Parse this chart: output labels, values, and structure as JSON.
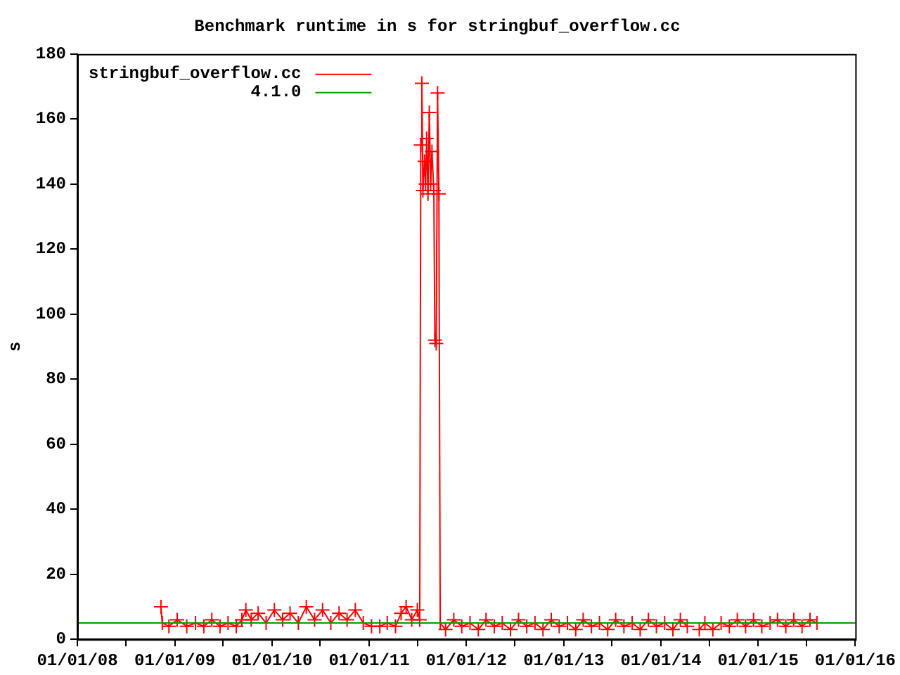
{
  "chart_data": {
    "type": "line",
    "title": "Benchmark runtime in s for stringbuf_overflow.cc",
    "ylabel": "s",
    "xlim": [
      "2008-01-01",
      "2016-01-01"
    ],
    "xticks": [
      {
        "value": "2008-01-01",
        "label": "01/01/08"
      },
      {
        "value": "2008-07-01",
        "label": null
      },
      {
        "value": "2009-01-01",
        "label": "01/01/09"
      },
      {
        "value": "2009-07-01",
        "label": null
      },
      {
        "value": "2010-01-01",
        "label": "01/01/10"
      },
      {
        "value": "2010-07-01",
        "label": null
      },
      {
        "value": "2011-01-01",
        "label": "01/01/11"
      },
      {
        "value": "2011-07-01",
        "label": null
      },
      {
        "value": "2012-01-01",
        "label": "01/01/12"
      },
      {
        "value": "2012-07-01",
        "label": null
      },
      {
        "value": "2013-01-01",
        "label": "01/01/13"
      },
      {
        "value": "2013-07-01",
        "label": null
      },
      {
        "value": "2014-01-01",
        "label": "01/01/14"
      },
      {
        "value": "2014-07-01",
        "label": null
      },
      {
        "value": "2015-01-01",
        "label": "01/01/15"
      },
      {
        "value": "2015-07-01",
        "label": null
      },
      {
        "value": "2016-01-01",
        "label": "01/01/16"
      }
    ],
    "ylim": [
      0,
      180
    ],
    "yticks": [
      0,
      20,
      40,
      60,
      80,
      100,
      120,
      140,
      160,
      180
    ],
    "grid": false,
    "legend": "top left",
    "marker": "cross",
    "line_style": "solid",
    "series": [
      {
        "name": "stringbuf_overflow.cc",
        "color": "#ff0000",
        "x": [
          "2008-11-10",
          "2008-11-15",
          "2008-12-10",
          "2009-01-10",
          "2009-02-15",
          "2009-03-20",
          "2009-04-20",
          "2009-05-20",
          "2009-06-20",
          "2009-07-20",
          "2009-08-20",
          "2009-09-10",
          "2009-09-25",
          "2009-10-15",
          "2009-11-10",
          "2009-12-10",
          "2010-01-10",
          "2010-02-10",
          "2010-03-10",
          "2010-04-10",
          "2010-05-10",
          "2010-06-10",
          "2010-07-10",
          "2010-08-10",
          "2010-09-10",
          "2010-10-10",
          "2010-11-10",
          "2010-12-10",
          "2011-01-10",
          "2011-02-10",
          "2011-03-10",
          "2011-04-10",
          "2011-05-01",
          "2011-05-20",
          "2011-06-10",
          "2011-07-01",
          "2011-07-10",
          "2011-07-14",
          "2011-07-18",
          "2011-07-22",
          "2011-07-28",
          "2011-08-01",
          "2011-08-05",
          "2011-08-10",
          "2011-08-15",
          "2011-08-20",
          "2011-08-25",
          "2011-09-01",
          "2011-09-05",
          "2011-09-10",
          "2011-09-15",
          "2011-09-20",
          "2011-09-25",
          "2011-10-15",
          "2011-11-15",
          "2011-12-15",
          "2012-01-15",
          "2012-02-15",
          "2012-03-15",
          "2012-04-15",
          "2012-05-15",
          "2012-06-15",
          "2012-07-15",
          "2012-08-15",
          "2012-09-15",
          "2012-10-15",
          "2012-11-15",
          "2012-12-15",
          "2013-01-15",
          "2013-02-15",
          "2013-03-15",
          "2013-04-15",
          "2013-05-15",
          "2013-06-15",
          "2013-07-15",
          "2013-08-15",
          "2013-09-15",
          "2013-10-15",
          "2013-11-15",
          "2013-12-15",
          "2014-01-15",
          "2014-02-15",
          "2014-03-15",
          "2014-04-10",
          "2014-05-01",
          "2014-05-25",
          "2014-06-15",
          "2014-07-15",
          "2014-08-15",
          "2014-09-15",
          "2014-10-15",
          "2014-11-15",
          "2014-12-15",
          "2015-01-15",
          "2015-02-15",
          "2015-03-15",
          "2015-04-15",
          "2015-05-15",
          "2015-06-15",
          "2015-07-15",
          "2015-08-10"
        ],
        "values": [
          10,
          5,
          4,
          6,
          4,
          5,
          4,
          6,
          4,
          5,
          4,
          6,
          9,
          6,
          8,
          5,
          9,
          6,
          8,
          5,
          10,
          6,
          9,
          5,
          8,
          6,
          9,
          5,
          4,
          4,
          5,
          4,
          8,
          10,
          6,
          9,
          6,
          152,
          171,
          138,
          147,
          140,
          154,
          137,
          162,
          140,
          150,
          138,
          92,
          91,
          168,
          137,
          5,
          3,
          6,
          4,
          5,
          3,
          6,
          4,
          5,
          3,
          6,
          4,
          5,
          3,
          6,
          4,
          5,
          3,
          6,
          4,
          5,
          3,
          6,
          4,
          5,
          3,
          6,
          4,
          5,
          3,
          6,
          4,
          null,
          3,
          5,
          3,
          5,
          4,
          6,
          4,
          6,
          4,
          5,
          6,
          4,
          6,
          4,
          6,
          5
        ]
      }
    ],
    "ref_lines": [
      {
        "axis": "y",
        "value": 5,
        "label": "4.1.0",
        "color": "#00a000"
      }
    ]
  }
}
